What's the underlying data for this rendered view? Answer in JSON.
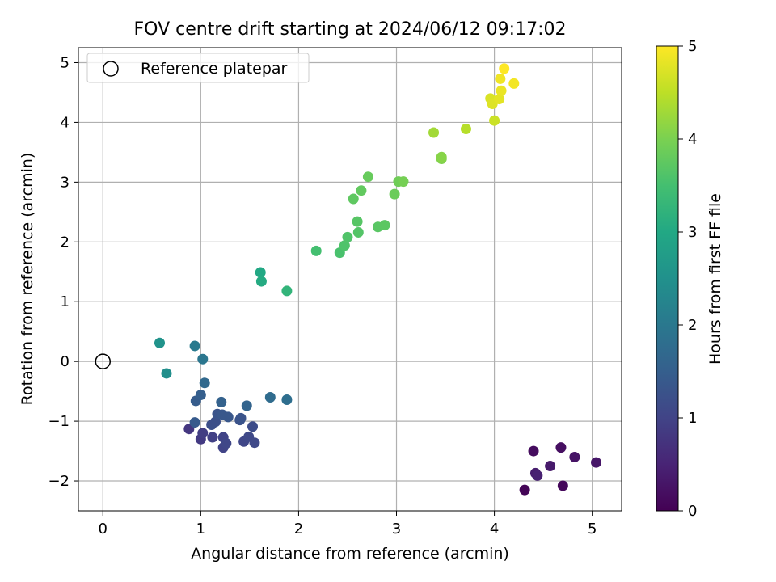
{
  "chart_data": {
    "type": "scatter",
    "title": "FOV centre drift starting at 2024/06/12 09:17:02",
    "xlabel": "Angular distance from reference (arcmin)",
    "ylabel": "Rotation from reference (arcmin)",
    "xlim": [
      -0.25,
      5.3
    ],
    "ylim": [
      -2.5,
      5.25
    ],
    "xticks": [
      0,
      1,
      2,
      3,
      4,
      5
    ],
    "yticks": [
      -2,
      -1,
      0,
      1,
      2,
      3,
      4,
      5
    ],
    "grid": true,
    "legend": {
      "position": "top-left",
      "entries": [
        "Reference platepar"
      ]
    },
    "reference_point": {
      "x": 0,
      "y": 0,
      "label": "Reference platepar"
    },
    "colorbar": {
      "label": "Hours from first FF file",
      "min": 0,
      "max": 5,
      "ticks": [
        0,
        1,
        2,
        3,
        4,
        5
      ],
      "colormap": "viridis"
    },
    "points": [
      {
        "x": 4.31,
        "y": -2.15,
        "c": 0.05
      },
      {
        "x": 4.7,
        "y": -2.08,
        "c": 0.1
      },
      {
        "x": 4.4,
        "y": -1.5,
        "c": 0.15
      },
      {
        "x": 4.68,
        "y": -1.44,
        "c": 0.2
      },
      {
        "x": 4.82,
        "y": -1.6,
        "c": 0.25
      },
      {
        "x": 5.04,
        "y": -1.69,
        "c": 0.3
      },
      {
        "x": 4.57,
        "y": -1.75,
        "c": 0.35
      },
      {
        "x": 4.42,
        "y": -1.87,
        "c": 0.4
      },
      {
        "x": 4.44,
        "y": -1.91,
        "c": 0.45
      },
      {
        "x": 0.88,
        "y": -1.13,
        "c": 0.8
      },
      {
        "x": 1.0,
        "y": -1.3,
        "c": 0.85
      },
      {
        "x": 1.02,
        "y": -1.2,
        "c": 0.9
      },
      {
        "x": 1.12,
        "y": -1.27,
        "c": 0.95
      },
      {
        "x": 1.23,
        "y": -1.27,
        "c": 1.0
      },
      {
        "x": 1.23,
        "y": -1.44,
        "c": 1.0
      },
      {
        "x": 1.26,
        "y": -1.37,
        "c": 1.05
      },
      {
        "x": 1.44,
        "y": -1.34,
        "c": 1.05
      },
      {
        "x": 1.49,
        "y": -1.26,
        "c": 1.1
      },
      {
        "x": 1.55,
        "y": -1.36,
        "c": 1.1
      },
      {
        "x": 1.53,
        "y": -1.09,
        "c": 1.15
      },
      {
        "x": 1.11,
        "y": -1.06,
        "c": 1.2
      },
      {
        "x": 1.15,
        "y": -1.01,
        "c": 1.2
      },
      {
        "x": 1.4,
        "y": -0.98,
        "c": 1.25
      },
      {
        "x": 1.41,
        "y": -0.95,
        "c": 1.3
      },
      {
        "x": 1.17,
        "y": -0.88,
        "c": 1.3
      },
      {
        "x": 1.22,
        "y": -0.89,
        "c": 1.35
      },
      {
        "x": 1.28,
        "y": -0.93,
        "c": 1.35
      },
      {
        "x": 0.94,
        "y": -1.02,
        "c": 1.4
      },
      {
        "x": 0.95,
        "y": -0.66,
        "c": 1.45
      },
      {
        "x": 1.0,
        "y": -0.56,
        "c": 1.5
      },
      {
        "x": 1.21,
        "y": -0.68,
        "c": 1.55
      },
      {
        "x": 1.47,
        "y": -0.74,
        "c": 1.6
      },
      {
        "x": 1.04,
        "y": -0.36,
        "c": 1.7
      },
      {
        "x": 1.71,
        "y": -0.6,
        "c": 1.75
      },
      {
        "x": 1.88,
        "y": -0.64,
        "c": 1.8
      },
      {
        "x": 1.02,
        "y": 0.04,
        "c": 1.95
      },
      {
        "x": 0.94,
        "y": 0.26,
        "c": 2.05
      },
      {
        "x": 0.65,
        "y": -0.2,
        "c": 2.45
      },
      {
        "x": 0.58,
        "y": 0.31,
        "c": 2.55
      },
      {
        "x": 1.61,
        "y": 1.49,
        "c": 3.0
      },
      {
        "x": 1.62,
        "y": 1.34,
        "c": 3.05
      },
      {
        "x": 1.88,
        "y": 1.18,
        "c": 3.25
      },
      {
        "x": 2.18,
        "y": 1.85,
        "c": 3.5
      },
      {
        "x": 2.42,
        "y": 1.82,
        "c": 3.55
      },
      {
        "x": 2.47,
        "y": 1.94,
        "c": 3.6
      },
      {
        "x": 2.5,
        "y": 2.08,
        "c": 3.62
      },
      {
        "x": 2.61,
        "y": 2.16,
        "c": 3.65
      },
      {
        "x": 2.6,
        "y": 2.34,
        "c": 3.68
      },
      {
        "x": 2.81,
        "y": 2.25,
        "c": 3.7
      },
      {
        "x": 2.88,
        "y": 2.28,
        "c": 3.72
      },
      {
        "x": 2.56,
        "y": 2.72,
        "c": 3.75
      },
      {
        "x": 2.64,
        "y": 2.86,
        "c": 3.78
      },
      {
        "x": 2.71,
        "y": 3.09,
        "c": 3.82
      },
      {
        "x": 2.98,
        "y": 2.8,
        "c": 3.85
      },
      {
        "x": 3.02,
        "y": 3.01,
        "c": 3.9
      },
      {
        "x": 3.07,
        "y": 3.01,
        "c": 3.95
      },
      {
        "x": 3.46,
        "y": 3.39,
        "c": 4.05
      },
      {
        "x": 3.46,
        "y": 3.42,
        "c": 4.1
      },
      {
        "x": 3.38,
        "y": 3.83,
        "c": 4.3
      },
      {
        "x": 3.71,
        "y": 3.89,
        "c": 4.45
      },
      {
        "x": 4.0,
        "y": 4.03,
        "c": 4.6
      },
      {
        "x": 3.96,
        "y": 4.4,
        "c": 4.72
      },
      {
        "x": 3.98,
        "y": 4.31,
        "c": 4.75
      },
      {
        "x": 4.05,
        "y": 4.39,
        "c": 4.8
      },
      {
        "x": 4.07,
        "y": 4.53,
        "c": 4.85
      },
      {
        "x": 4.06,
        "y": 4.73,
        "c": 4.9
      },
      {
        "x": 4.2,
        "y": 4.65,
        "c": 4.92
      },
      {
        "x": 4.1,
        "y": 4.9,
        "c": 5.0
      }
    ]
  }
}
